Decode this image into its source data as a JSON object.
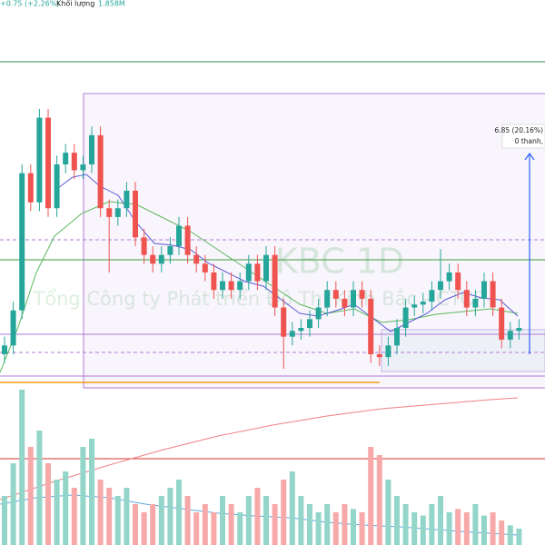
{
  "header": {
    "change": "+0.75 (+2.26%)",
    "volume_label": "Khối lượng",
    "volume": "1.858M"
  },
  "watermark": {
    "symbol": "KBC 1D",
    "company": "Tổng Công ty Phát triển Đô Thị Kinh Bắc - CTCP"
  },
  "measure": {
    "label": "6.85 (20.16%)",
    "bars": "0 thanh,"
  },
  "chart_data": {
    "type": "candlestick",
    "open": [
      34.0,
      34.3,
      35.5,
      40.2,
      39.2,
      42.1,
      39.0,
      40.5,
      40.9,
      40.3,
      40.5,
      41.5,
      39.0,
      38.7,
      39.0,
      39.6,
      38.0,
      37.4,
      37.1,
      37.4,
      37.7,
      38.4,
      37.4,
      37.1,
      36.8,
      36.2,
      36.5,
      36.2,
      36.5,
      37.1,
      36.5,
      37.4,
      35.6,
      34.6,
      34.8,
      34.9,
      35.2,
      35.6,
      36.2,
      35.9,
      35.6,
      36.2,
      35.9,
      34.0,
      33.9,
      34.3,
      34.9,
      35.6,
      35.7,
      35.8,
      36.2,
      36.5,
      36.8,
      36.2,
      35.6,
      35.9,
      36.5,
      35.6,
      34.5,
      34.8
    ],
    "high": [
      34.6,
      35.8,
      40.5,
      40.5,
      42.4,
      42.4,
      40.8,
      41.2,
      41.2,
      40.8,
      41.8,
      41.8,
      39.3,
      39.3,
      39.9,
      39.9,
      38.3,
      37.7,
      37.7,
      38.0,
      38.7,
      38.7,
      37.7,
      37.4,
      37.1,
      36.8,
      36.8,
      36.8,
      37.4,
      37.4,
      37.7,
      37.7,
      35.9,
      35.1,
      35.2,
      35.5,
      35.9,
      36.5,
      36.5,
      36.2,
      36.5,
      36.5,
      36.2,
      34.3,
      34.6,
      35.2,
      35.9,
      36.0,
      36.1,
      36.5,
      37.6,
      37.1,
      37.1,
      36.5,
      36.2,
      36.8,
      36.8,
      35.9,
      35.1,
      35.2
    ],
    "low": [
      33.7,
      34.0,
      35.2,
      38.9,
      38.9,
      38.7,
      38.7,
      40.2,
      40.0,
      40.0,
      40.2,
      38.7,
      36.8,
      38.4,
      38.7,
      37.7,
      37.1,
      36.8,
      36.8,
      37.1,
      37.4,
      37.1,
      36.8,
      36.5,
      35.9,
      35.9,
      35.9,
      35.9,
      36.2,
      36.2,
      36.2,
      35.3,
      33.5,
      34.3,
      34.5,
      34.6,
      34.9,
      35.3,
      35.6,
      35.3,
      35.3,
      35.6,
      33.7,
      33.6,
      33.6,
      34.0,
      34.6,
      35.3,
      35.4,
      35.5,
      35.9,
      36.2,
      35.9,
      35.3,
      35.3,
      35.6,
      35.3,
      34.2,
      34.2,
      34.5
    ],
    "close": [
      34.3,
      35.5,
      40.2,
      39.2,
      42.1,
      39.0,
      40.5,
      40.9,
      40.3,
      40.5,
      41.5,
      39.0,
      38.7,
      39.0,
      39.6,
      38.0,
      37.4,
      37.1,
      37.4,
      37.7,
      38.4,
      37.4,
      37.1,
      36.8,
      36.2,
      36.5,
      36.2,
      36.5,
      37.1,
      36.5,
      37.4,
      35.6,
      34.6,
      34.8,
      34.9,
      35.2,
      35.6,
      36.2,
      35.9,
      35.6,
      36.2,
      35.9,
      34.0,
      33.9,
      34.3,
      34.9,
      35.6,
      35.7,
      35.8,
      36.2,
      36.5,
      36.8,
      36.2,
      35.6,
      35.9,
      36.5,
      35.6,
      34.5,
      34.8,
      34.9
    ],
    "volume": [
      30,
      50,
      95,
      60,
      70,
      50,
      40,
      45,
      35,
      60,
      65,
      40,
      35,
      30,
      35,
      25,
      20,
      25,
      30,
      35,
      40,
      30,
      20,
      25,
      20,
      30,
      25,
      20,
      30,
      35,
      30,
      25,
      40,
      45,
      30,
      25,
      20,
      25,
      20,
      25,
      22,
      20,
      60,
      55,
      40,
      30,
      25,
      20,
      18,
      25,
      30,
      20,
      22,
      20,
      25,
      18,
      20,
      15,
      12,
      10
    ],
    "up_color": "#26a69a",
    "down_color": "#ef5350",
    "up_volume_color": "#93d5c8",
    "down_volume_color": "#f7a9a9",
    "ylim": [
      32.91,
      43.02
    ],
    "volume_ylim": [
      0,
      100
    ]
  }
}
